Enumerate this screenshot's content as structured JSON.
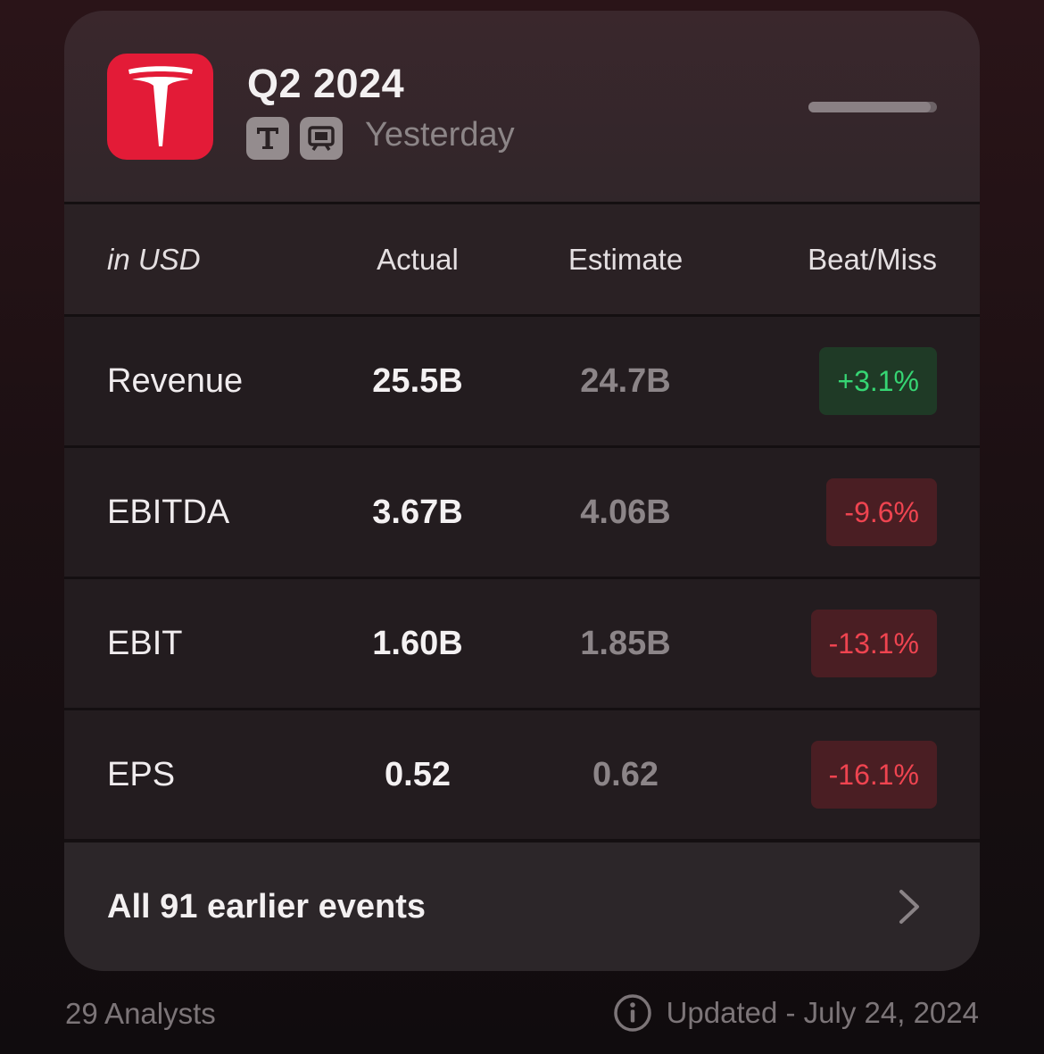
{
  "header": {
    "logo": "tesla-logo",
    "title": "Q2 2024",
    "badges": [
      "transcript-icon",
      "presentation-icon"
    ],
    "when": "Yesterday",
    "progress": 0.95
  },
  "table": {
    "columns": [
      "in USD",
      "Actual",
      "Estimate",
      "Beat/Miss"
    ],
    "rows": [
      {
        "label": "Revenue",
        "actual": "25.5B",
        "estimate": "24.7B",
        "diff": "+3.1%",
        "status": "beat"
      },
      {
        "label": "EBITDA",
        "actual": "3.67B",
        "estimate": "4.06B",
        "diff": "-9.6%",
        "status": "miss"
      },
      {
        "label": "EBIT",
        "actual": "1.60B",
        "estimate": "1.85B",
        "diff": "-13.1%",
        "status": "miss"
      },
      {
        "label": "EPS",
        "actual": "0.52",
        "estimate": "0.62",
        "diff": "-16.1%",
        "status": "miss"
      }
    ]
  },
  "footer": {
    "link_text": "All 91 earlier events"
  },
  "meta": {
    "analysts": "29 Analysts",
    "updated": "Updated - July 24, 2024"
  },
  "colors": {
    "brand": "#e31b37",
    "beat_text": "#36d573",
    "beat_bg": "#1f3a26",
    "miss_text": "#ef4450",
    "miss_bg": "#4a1e23"
  }
}
